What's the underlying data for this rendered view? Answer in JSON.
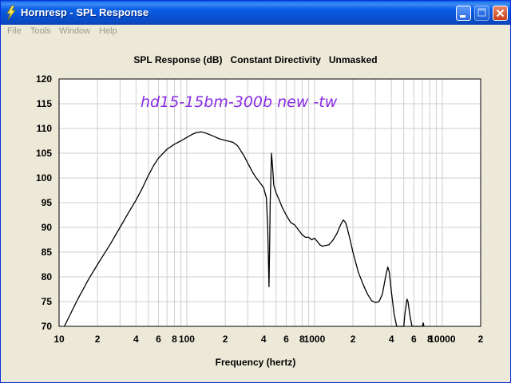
{
  "window": {
    "title": "Hornresp - SPL Response"
  },
  "menu": [
    "File",
    "Tools",
    "Window",
    "Help"
  ],
  "chart_data": {
    "type": "line",
    "title": "SPL Response (dB)   Constant Directivity   Unmasked",
    "annotation": "hd15-15bm-300b new -tw",
    "xlabel": "Frequency (hertz)",
    "ylabel": "",
    "x_scale": "log",
    "xlim": [
      10,
      20000
    ],
    "ylim": [
      70,
      120
    ],
    "grid": true,
    "y_ticks": [
      "70",
      "75",
      "80",
      "85",
      "90",
      "95",
      "100",
      "105",
      "110",
      "115",
      "120"
    ],
    "x_ticks": [
      {
        "v": 10,
        "label": "10"
      },
      {
        "v": 20,
        "label": "2"
      },
      {
        "v": 40,
        "label": "4"
      },
      {
        "v": 60,
        "label": "6"
      },
      {
        "v": 80,
        "label": "8"
      },
      {
        "v": 100,
        "label": "100"
      },
      {
        "v": 200,
        "label": "2"
      },
      {
        "v": 400,
        "label": "4"
      },
      {
        "v": 600,
        "label": "6"
      },
      {
        "v": 800,
        "label": "8"
      },
      {
        "v": 1000,
        "label": "1000"
      },
      {
        "v": 2000,
        "label": "2"
      },
      {
        "v": 4000,
        "label": "4"
      },
      {
        "v": 6000,
        "label": "6"
      },
      {
        "v": 8000,
        "label": "8"
      },
      {
        "v": 10000,
        "label": "10000"
      },
      {
        "v": 20000,
        "label": "2"
      }
    ],
    "series": [
      {
        "color": "#000000",
        "points": [
          [
            11,
            70
          ],
          [
            12,
            72
          ],
          [
            14,
            75.5
          ],
          [
            17,
            79.5
          ],
          [
            20,
            82.5
          ],
          [
            25,
            86.5
          ],
          [
            30,
            90
          ],
          [
            35,
            93
          ],
          [
            40,
            95.5
          ],
          [
            45,
            98
          ],
          [
            50,
            100.5
          ],
          [
            55,
            102.5
          ],
          [
            60,
            104
          ],
          [
            70,
            105.8
          ],
          [
            80,
            106.8
          ],
          [
            90,
            107.5
          ],
          [
            100,
            108.2
          ],
          [
            110,
            108.8
          ],
          [
            120,
            109.2
          ],
          [
            130,
            109.3
          ],
          [
            140,
            109.1
          ],
          [
            160,
            108.5
          ],
          [
            180,
            107.9
          ],
          [
            200,
            107.6
          ],
          [
            230,
            107.2
          ],
          [
            250,
            106.5
          ],
          [
            280,
            104.5
          ],
          [
            300,
            103
          ],
          [
            330,
            101
          ],
          [
            350,
            100
          ],
          [
            380,
            98.8
          ],
          [
            400,
            98
          ],
          [
            420,
            96
          ],
          [
            430,
            90
          ],
          [
            440,
            78
          ],
          [
            445,
            86
          ],
          [
            450,
            95
          ],
          [
            460,
            105
          ],
          [
            470,
            102
          ],
          [
            480,
            98.5
          ],
          [
            500,
            97
          ],
          [
            530,
            95.5
          ],
          [
            560,
            94
          ],
          [
            600,
            92.5
          ],
          [
            650,
            91
          ],
          [
            700,
            90.5
          ],
          [
            750,
            89.5
          ],
          [
            800,
            88.5
          ],
          [
            850,
            88
          ],
          [
            900,
            88
          ],
          [
            950,
            87.5
          ],
          [
            1000,
            87.8
          ],
          [
            1050,
            87.2
          ],
          [
            1100,
            86.5
          ],
          [
            1150,
            86.2
          ],
          [
            1200,
            86.3
          ],
          [
            1300,
            86.5
          ],
          [
            1400,
            87.5
          ],
          [
            1500,
            88.8
          ],
          [
            1600,
            90.5
          ],
          [
            1680,
            91.5
          ],
          [
            1750,
            91
          ],
          [
            1800,
            90
          ],
          [
            1900,
            87.5
          ],
          [
            2000,
            85
          ],
          [
            2200,
            81
          ],
          [
            2400,
            78.5
          ],
          [
            2600,
            76.5
          ],
          [
            2800,
            75.2
          ],
          [
            3000,
            74.8
          ],
          [
            3200,
            75
          ],
          [
            3400,
            76.5
          ],
          [
            3600,
            80
          ],
          [
            3750,
            82
          ],
          [
            3850,
            81
          ],
          [
            4000,
            77
          ],
          [
            4200,
            72.5
          ],
          [
            4400,
            70
          ],
          [
            5000,
            70
          ],
          [
            5100,
            72.5
          ],
          [
            5300,
            75.5
          ],
          [
            5400,
            75
          ],
          [
            5600,
            72
          ],
          [
            5800,
            70
          ],
          [
            7000,
            70
          ],
          [
            7100,
            70.7
          ],
          [
            7200,
            70
          ]
        ]
      }
    ]
  }
}
